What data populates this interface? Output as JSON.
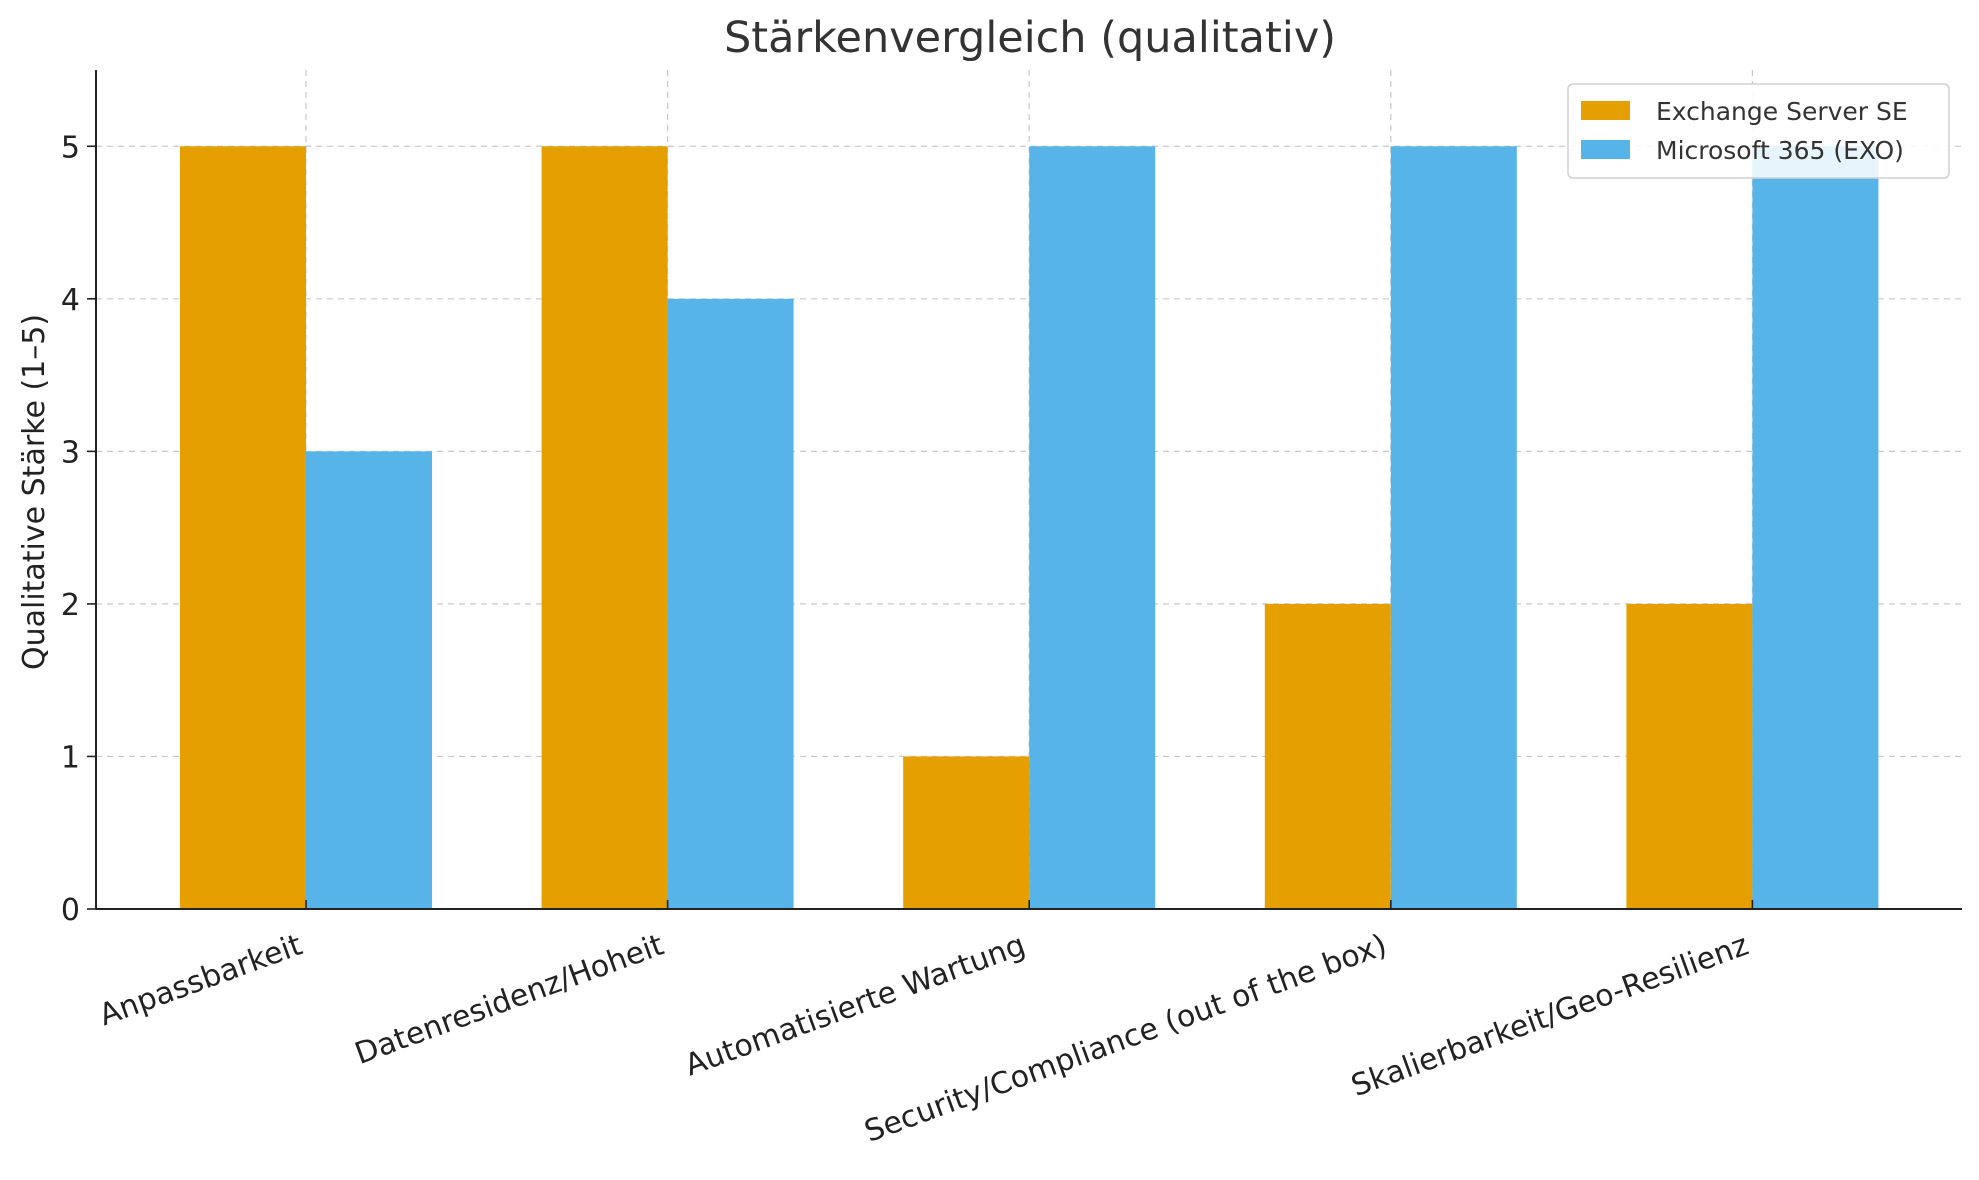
{
  "chart_data": {
    "type": "bar",
    "title": "Stärkenvergleich (qualitativ)",
    "xlabel": "",
    "ylabel": "Qualitative Stärke (1–5)",
    "categories": [
      "Anpassbarkeit",
      "Datenresidenz/Hoheit",
      "Automatisierte Wartung",
      "Security/Compliance (out of the box)",
      "Skalierbarkeit/Geo-Resilienz"
    ],
    "series": [
      {
        "name": "Exchange Server SE",
        "color": "#E69F00",
        "values": [
          5,
          5,
          1,
          2,
          2
        ]
      },
      {
        "name": "Microsoft 365 (EXO)",
        "color": "#56B4E9",
        "values": [
          3,
          4,
          5,
          5,
          5
        ]
      }
    ],
    "ylim": [
      0,
      5.5
    ],
    "yticks": [
      0,
      1,
      2,
      3,
      4,
      5
    ],
    "grid": true,
    "legend": "top-right"
  }
}
